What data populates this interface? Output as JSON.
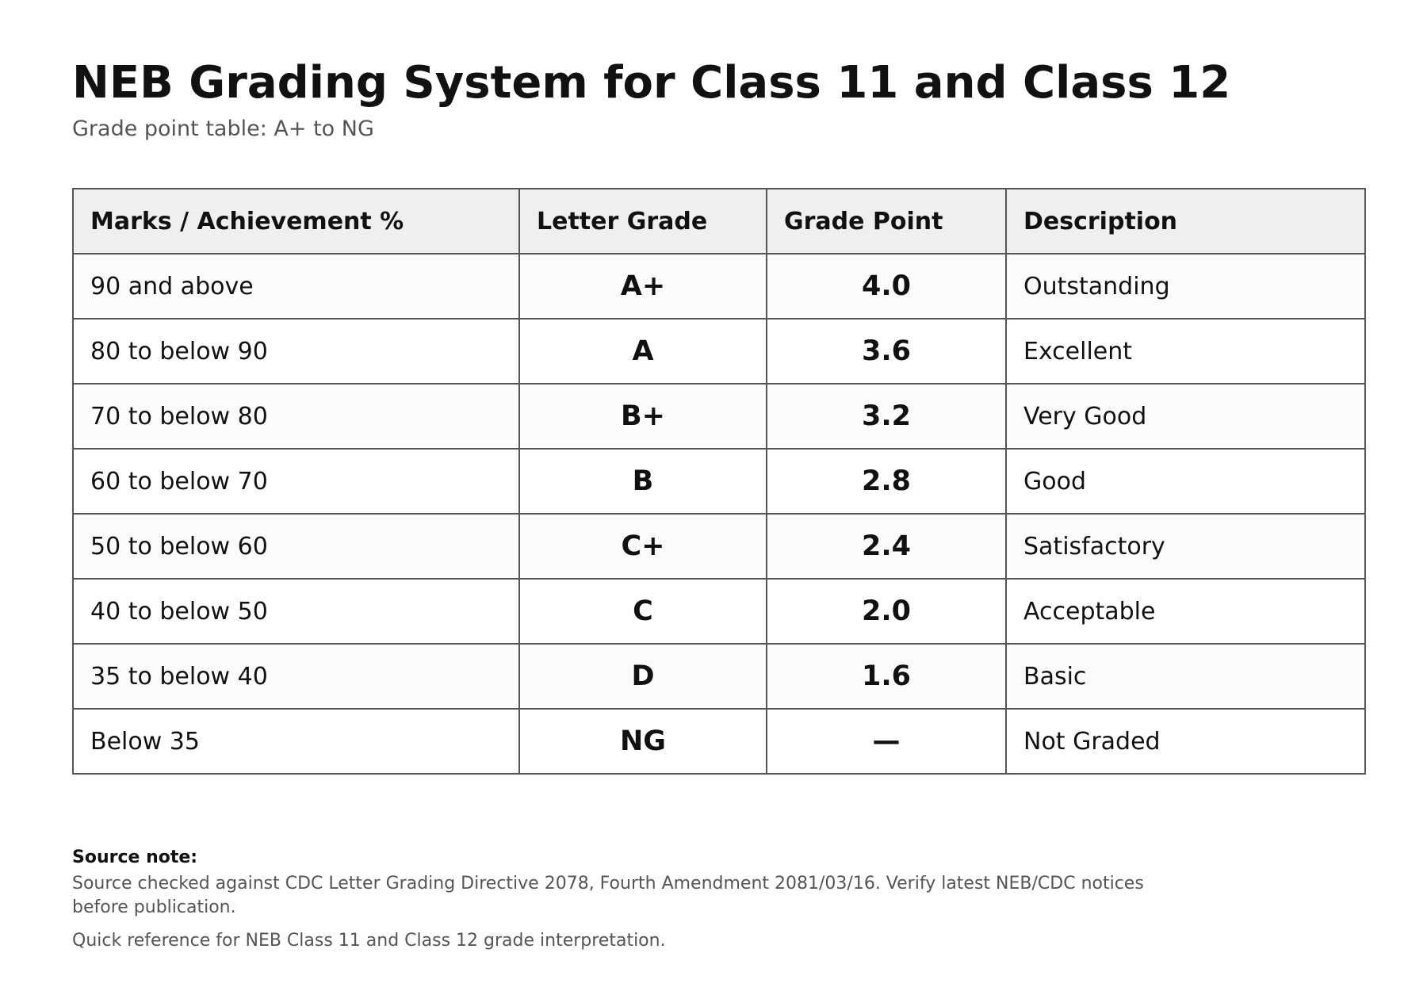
{
  "header": {
    "title": "NEB Grading System for Class 11 and Class 12",
    "subtitle": "Grade point table: A+ to NG"
  },
  "table": {
    "columns": [
      "Marks / Achievement %",
      "Letter Grade",
      "Grade Point",
      "Description"
    ],
    "rows": [
      {
        "marks": "90 and above",
        "grade": "A+",
        "point": "4.0",
        "description": "Outstanding"
      },
      {
        "marks": "80 to below 90",
        "grade": "A",
        "point": "3.6",
        "description": "Excellent"
      },
      {
        "marks": "70 to below 80",
        "grade": "B+",
        "point": "3.2",
        "description": "Very Good"
      },
      {
        "marks": "60 to below 70",
        "grade": "B",
        "point": "2.8",
        "description": "Good"
      },
      {
        "marks": "50 to below 60",
        "grade": "C+",
        "point": "2.4",
        "description": "Satisfactory"
      },
      {
        "marks": "40 to below 50",
        "grade": "C",
        "point": "2.0",
        "description": "Acceptable"
      },
      {
        "marks": "35 to below 40",
        "grade": "D",
        "point": "1.6",
        "description": "Basic"
      },
      {
        "marks": "Below 35",
        "grade": "NG",
        "point": "—",
        "description": "Not Graded"
      }
    ]
  },
  "footer": {
    "note_label": "Source note:",
    "note_text": "Source checked against CDC Letter Grading Directive 2078, Fourth Amendment 2081/03/16. Verify latest NEB/CDC notices before publication.",
    "reference_text": "Quick reference for NEB Class 11 and Class 12 grade interpretation."
  },
  "colors": {
    "text": "#111111",
    "muted": "#555555",
    "header_bg": "#efefef",
    "border": "#555555"
  }
}
